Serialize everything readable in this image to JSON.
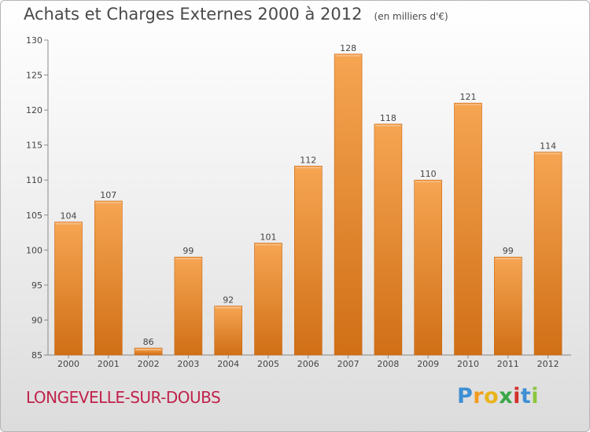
{
  "header": {
    "title": "Achats et Charges Externes 2000 à 2012",
    "subtitle": "(en milliers d'€)"
  },
  "footer": {
    "town": "LONGEVELLE-SUR-DOUBS",
    "brand": "Proxiti"
  },
  "colors": {
    "bar_light": "#f6a552",
    "bar_dark": "#d06f16",
    "town_text": "#c0224b"
  },
  "chart_data": {
    "type": "bar",
    "title": "Achats et Charges Externes 2000 à 2012",
    "subtitle": "(en milliers d'€)",
    "categories": [
      "2000",
      "2001",
      "2002",
      "2003",
      "2004",
      "2005",
      "2006",
      "2007",
      "2008",
      "2009",
      "2010",
      "2011",
      "2012"
    ],
    "values": [
      104,
      107,
      86,
      99,
      92,
      101,
      112,
      128,
      118,
      110,
      121,
      99,
      114
    ],
    "ylim": [
      85,
      130
    ],
    "yticks": [
      85,
      90,
      95,
      100,
      105,
      110,
      115,
      120,
      125,
      130
    ],
    "grid": false,
    "legend": "none"
  }
}
